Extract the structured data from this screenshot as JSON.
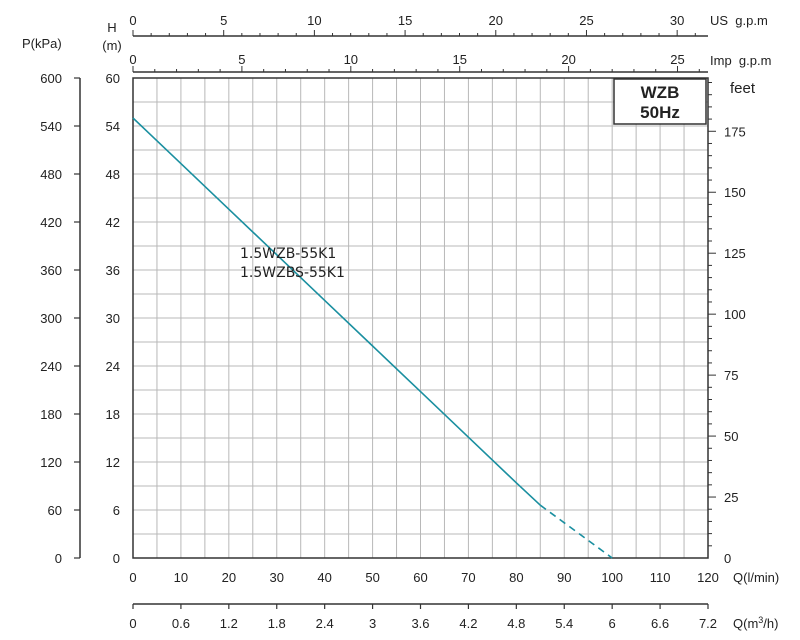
{
  "chart_data": {
    "type": "line",
    "brand_lines": [
      "WZB",
      "50Hz"
    ],
    "series": [
      {
        "name": "1.5WZB-55K1 / 1.5WZBS-55K1",
        "label_lines": [
          "1.5WZB-55K1",
          "1.5WZBS-55K1"
        ],
        "color": "#1a8fa0",
        "points": [
          [
            0,
            55
          ],
          [
            10,
            49.3
          ],
          [
            20,
            43.6
          ],
          [
            30,
            37.9
          ],
          [
            40,
            32.2
          ],
          [
            50,
            26.5
          ],
          [
            60,
            20.8
          ],
          [
            70,
            15.1
          ],
          [
            80,
            9.4
          ],
          [
            85,
            6.6
          ]
        ],
        "dashed_points": [
          [
            85,
            6.6
          ],
          [
            100,
            0
          ]
        ]
      }
    ],
    "x_axes": {
      "q_lmin": {
        "label": "Q(l/min)",
        "range": [
          0,
          120
        ],
        "ticks": [
          "0",
          "10",
          "20",
          "30",
          "40",
          "50",
          "60",
          "70",
          "80",
          "90",
          "100",
          "110",
          "120"
        ]
      },
      "q_m3h": {
        "label": "Q(m³/h)",
        "label_base": "Q(m",
        "label_sup": "3",
        "label_tail": "/h)",
        "range": [
          0,
          7.2
        ],
        "ticks": [
          "0",
          "0.6",
          "1.2",
          "1.8",
          "2.4",
          "3",
          "3.6",
          "4.2",
          "4.8",
          "5.4",
          "6",
          "6.6",
          "7.2"
        ]
      },
      "us_gpm": {
        "label": "US  g.p.m",
        "range": [
          0,
          31.7
        ],
        "ticks": [
          "0",
          "5",
          "10",
          "15",
          "20",
          "25",
          "30"
        ]
      },
      "imp_gpm": {
        "label": "Imp  g.p.m",
        "range": [
          0,
          26.4
        ],
        "ticks": [
          "0",
          "5",
          "10",
          "15",
          "20",
          "25"
        ]
      }
    },
    "y_axes": {
      "h_m": {
        "label_lines": [
          "H",
          "(m)"
        ],
        "range": [
          0,
          60
        ],
        "ticks": [
          "0",
          "6",
          "12",
          "18",
          "24",
          "30",
          "36",
          "42",
          "48",
          "54",
          "60"
        ]
      },
      "p_kpa": {
        "label": "P(kPa)",
        "range": [
          0,
          600
        ],
        "ticks": [
          "0",
          "60",
          "120",
          "180",
          "240",
          "300",
          "360",
          "420",
          "480",
          "540",
          "600"
        ]
      },
      "feet": {
        "label": "feet",
        "range": [
          0,
          196.85
        ],
        "ticks": [
          "0",
          "25",
          "50",
          "75",
          "100",
          "125",
          "150",
          "175"
        ]
      }
    },
    "grid": true,
    "colors": {
      "grid": "#b8b8b8",
      "frame": "#333333",
      "curve": "#1a8fa0"
    }
  }
}
